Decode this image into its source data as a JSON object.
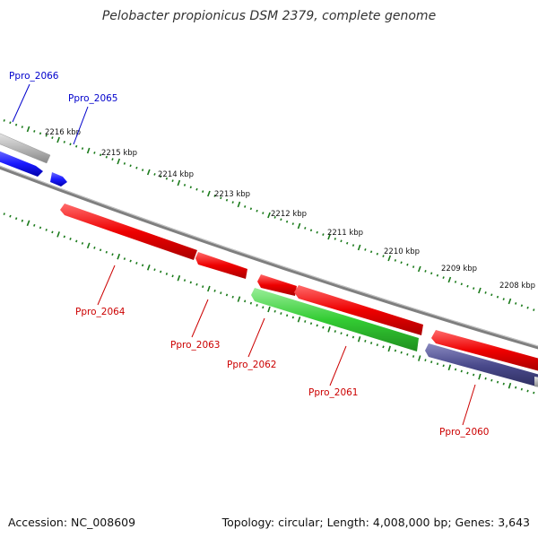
{
  "title": "Pelobacter propionicus DSM 2379, complete genome",
  "accession": "Accession: NC_008609",
  "summary": "Topology: circular; Length: 4,008,000 bp; Genes: 3,643",
  "scale_labels": [
    "2216 kbp",
    "2215 kbp",
    "2214 kbp",
    "2213 kbp",
    "2212 kbp",
    "2211 kbp",
    "2210 kbp",
    "2209 kbp",
    "2208 kbp"
  ],
  "genes": [
    {
      "label": "Ppro_2066",
      "strand": "forward",
      "color": "#0000cc"
    },
    {
      "label": "Ppro_2065",
      "strand": "forward",
      "color": "#0000cc"
    },
    {
      "label": "Ppro_2064",
      "strand": "reverse",
      "color": "#cc0000"
    },
    {
      "label": "Ppro_2063",
      "strand": "reverse",
      "color": "#cc0000"
    },
    {
      "label": "Ppro_2062",
      "strand": "reverse",
      "color": "#cc0000"
    },
    {
      "label": "Ppro_2061",
      "strand": "reverse",
      "color": "#cc0000"
    },
    {
      "label": "Ppro_2060",
      "strand": "reverse",
      "color": "#cc0000"
    }
  ],
  "colors": {
    "forward_label": "#0000cc",
    "reverse_label": "#cc0000",
    "forward_cds": "#1a1aff",
    "reverse_cds": "#ff1a1a",
    "green_feature": "#33cc33",
    "purple_feature": "#4a4a8c",
    "gray_feature": "#b0b0b0",
    "backbone": "#808080",
    "ticks": "#1a7a1a"
  }
}
